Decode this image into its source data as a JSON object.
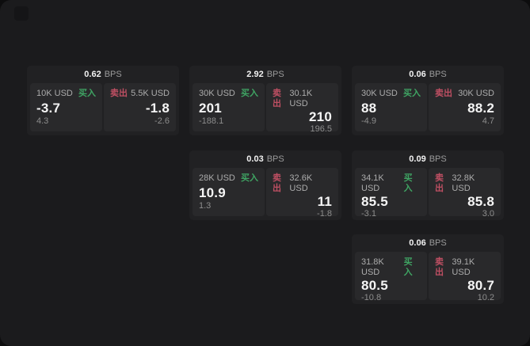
{
  "labels": {
    "bps_unit": "BPS",
    "buy": "买入",
    "sell": "卖出"
  },
  "colors": {
    "buy": "#3fa463",
    "sell": "#bf4f63",
    "container": "#1b1b1d",
    "card": "#212123",
    "panel": "#29292b"
  },
  "cards": [
    {
      "bps": "0.62",
      "buy": {
        "amount": "10K USD",
        "price": "-3.7",
        "delta": "4.3"
      },
      "sell": {
        "amount": "5.5K USD",
        "price": "-1.8",
        "delta": "-2.6"
      }
    },
    {
      "bps": "2.92",
      "buy": {
        "amount": "30K USD",
        "price": "201",
        "delta": "-188.1"
      },
      "sell": {
        "amount": "30.1K USD",
        "price": "210",
        "delta": "196.5"
      }
    },
    {
      "bps": "0.06",
      "buy": {
        "amount": "30K USD",
        "price": "88",
        "delta": "-4.9"
      },
      "sell": {
        "amount": "30K USD",
        "price": "88.2",
        "delta": "4.7"
      }
    },
    {
      "bps": "0.03",
      "buy": {
        "amount": "28K USD",
        "price": "10.9",
        "delta": "1.3"
      },
      "sell": {
        "amount": "32.6K USD",
        "price": "11",
        "delta": "-1.8"
      }
    },
    {
      "bps": "0.09",
      "buy": {
        "amount": "34.1K USD",
        "price": "85.5",
        "delta": "-3.1"
      },
      "sell": {
        "amount": "32.8K USD",
        "price": "85.8",
        "delta": "3.0"
      }
    },
    {
      "bps": "0.06",
      "buy": {
        "amount": "31.8K USD",
        "price": "80.5",
        "delta": "-10.8"
      },
      "sell": {
        "amount": "39.1K USD",
        "price": "80.7",
        "delta": "10.2"
      }
    }
  ]
}
